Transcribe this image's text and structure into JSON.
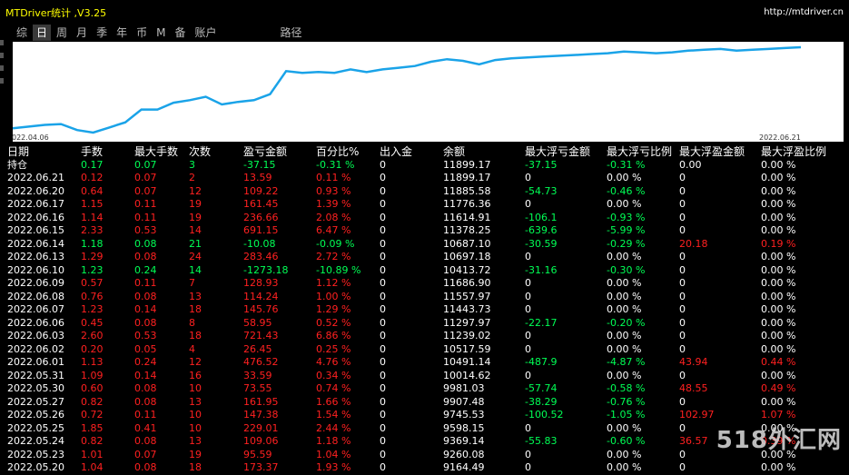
{
  "window": {
    "title": "MTDriver统计 ,V3.25",
    "url": "http://mtdriver.cn"
  },
  "tabs": [
    "综",
    "日",
    "周",
    "月",
    "季",
    "年",
    "币",
    "M",
    "备",
    "账户",
    "路径"
  ],
  "active_tab": "日",
  "chart_data": {
    "type": "line",
    "x_start_label": "022.04.06",
    "x_end_label": "2022.06.21",
    "series": [
      {
        "values": [
          0.05,
          0.07,
          0.09,
          0.1,
          0.03,
          0.0,
          0.06,
          0.12,
          0.27,
          0.27,
          0.35,
          0.38,
          0.42,
          0.33,
          0.36,
          0.38,
          0.45,
          0.72,
          0.7,
          0.71,
          0.7,
          0.74,
          0.71,
          0.74,
          0.76,
          0.78,
          0.83,
          0.86,
          0.84,
          0.8,
          0.85,
          0.87,
          0.88,
          0.89,
          0.9,
          0.91,
          0.92,
          0.93,
          0.95,
          0.94,
          0.93,
          0.94,
          0.96,
          0.97,
          0.98,
          0.96,
          0.97,
          0.98,
          0.99,
          1.0
        ],
        "color": "#1aa3e8"
      }
    ],
    "grid": false,
    "background": "#ffffff"
  },
  "table": {
    "headers": [
      "日期",
      "手数",
      "最大手数",
      "次数",
      "盈亏金额",
      "百分比%",
      "出入金",
      "余额",
      "最大浮亏金额",
      "最大浮亏比例",
      "最大浮盈金额",
      "最大浮盈比例"
    ],
    "rows": [
      [
        "持仓",
        "0.17",
        "0.07",
        "3",
        "-37.15",
        "-0.31 %",
        "0",
        "11899.17",
        "-37.15",
        "-0.31 %",
        "0.00",
        "0.00 %"
      ],
      [
        "2022.06.21",
        "0.12",
        "0.07",
        "2",
        "13.59",
        "0.11 %",
        "0",
        "11899.17",
        "0",
        "0.00 %",
        "0",
        "0.00 %"
      ],
      [
        "2022.06.20",
        "0.64",
        "0.07",
        "12",
        "109.22",
        "0.93 %",
        "0",
        "11885.58",
        "-54.73",
        "-0.46 %",
        "0",
        "0.00 %"
      ],
      [
        "2022.06.17",
        "1.15",
        "0.11",
        "19",
        "161.45",
        "1.39 %",
        "0",
        "11776.36",
        "0",
        "0.00 %",
        "0",
        "0.00 %"
      ],
      [
        "2022.06.16",
        "1.14",
        "0.11",
        "19",
        "236.66",
        "2.08 %",
        "0",
        "11614.91",
        "-106.1",
        "-0.93 %",
        "0",
        "0.00 %"
      ],
      [
        "2022.06.15",
        "2.33",
        "0.53",
        "14",
        "691.15",
        "6.47 %",
        "0",
        "11378.25",
        "-639.6",
        "-5.99 %",
        "0",
        "0.00 %"
      ],
      [
        "2022.06.14",
        "1.18",
        "0.08",
        "21",
        "-10.08",
        "-0.09 %",
        "0",
        "10687.10",
        "-30.59",
        "-0.29 %",
        "20.18",
        "0.19 %"
      ],
      [
        "2022.06.13",
        "1.29",
        "0.08",
        "24",
        "283.46",
        "2.72 %",
        "0",
        "10697.18",
        "0",
        "0.00 %",
        "0",
        "0.00 %"
      ],
      [
        "2022.06.10",
        "1.23",
        "0.24",
        "14",
        "-1273.18",
        "-10.89 %",
        "0",
        "10413.72",
        "-31.16",
        "-0.30 %",
        "0",
        "0.00 %"
      ],
      [
        "2022.06.09",
        "0.57",
        "0.11",
        "7",
        "128.93",
        "1.12 %",
        "0",
        "11686.90",
        "0",
        "0.00 %",
        "0",
        "0.00 %"
      ],
      [
        "2022.06.08",
        "0.76",
        "0.08",
        "13",
        "114.24",
        "1.00 %",
        "0",
        "11557.97",
        "0",
        "0.00 %",
        "0",
        "0.00 %"
      ],
      [
        "2022.06.07",
        "1.23",
        "0.14",
        "18",
        "145.76",
        "1.29 %",
        "0",
        "11443.73",
        "0",
        "0.00 %",
        "0",
        "0.00 %"
      ],
      [
        "2022.06.06",
        "0.45",
        "0.08",
        "8",
        "58.95",
        "0.52 %",
        "0",
        "11297.97",
        "-22.17",
        "-0.20 %",
        "0",
        "0.00 %"
      ],
      [
        "2022.06.03",
        "2.60",
        "0.53",
        "18",
        "721.43",
        "6.86 %",
        "0",
        "11239.02",
        "0",
        "0.00 %",
        "0",
        "0.00 %"
      ],
      [
        "2022.06.02",
        "0.20",
        "0.05",
        "4",
        "26.45",
        "0.25 %",
        "0",
        "10517.59",
        "0",
        "0.00 %",
        "0",
        "0.00 %"
      ],
      [
        "2022.06.01",
        "1.13",
        "0.24",
        "12",
        "476.52",
        "4.76 %",
        "0",
        "10491.14",
        "-487.9",
        "-4.87 %",
        "43.94",
        "0.44 %"
      ],
      [
        "2022.05.31",
        "1.09",
        "0.14",
        "16",
        "33.59",
        "0.34 %",
        "0",
        "10014.62",
        "0",
        "0.00 %",
        "0",
        "0.00 %"
      ],
      [
        "2022.05.30",
        "0.60",
        "0.08",
        "10",
        "73.55",
        "0.74 %",
        "0",
        "9981.03",
        "-57.74",
        "-0.58 %",
        "48.55",
        "0.49 %"
      ],
      [
        "2022.05.27",
        "0.82",
        "0.08",
        "13",
        "161.95",
        "1.66 %",
        "0",
        "9907.48",
        "-38.29",
        "-0.76 %",
        "0",
        "0.00 %"
      ],
      [
        "2022.05.26",
        "0.72",
        "0.11",
        "10",
        "147.38",
        "1.54 %",
        "0",
        "9745.53",
        "-100.52",
        "-1.05 %",
        "102.97",
        "1.07 %"
      ],
      [
        "2022.05.25",
        "1.85",
        "0.41",
        "10",
        "229.01",
        "2.44 %",
        "0",
        "9598.15",
        "0",
        "0.00 %",
        "0",
        "0.00 %"
      ],
      [
        "2022.05.24",
        "0.82",
        "0.08",
        "13",
        "109.06",
        "1.18 %",
        "0",
        "9369.14",
        "-55.83",
        "-0.60 %",
        "36.57",
        "0.39 %"
      ],
      [
        "2022.05.23",
        "1.01",
        "0.07",
        "19",
        "95.59",
        "1.04 %",
        "0",
        "9260.08",
        "0",
        "0.00 %",
        "0",
        "0.00 %"
      ],
      [
        "2022.05.20",
        "1.04",
        "0.08",
        "18",
        "173.37",
        "1.93 %",
        "0",
        "9164.49",
        "0",
        "0.00 %",
        "0",
        "0.00 %"
      ]
    ]
  },
  "watermark": "518外汇网",
  "colors": {
    "title": "#ffff00",
    "positive": "#ff2020",
    "negative": "#00ff55",
    "neutral": "#ffffff",
    "line": "#1aa3e8"
  }
}
